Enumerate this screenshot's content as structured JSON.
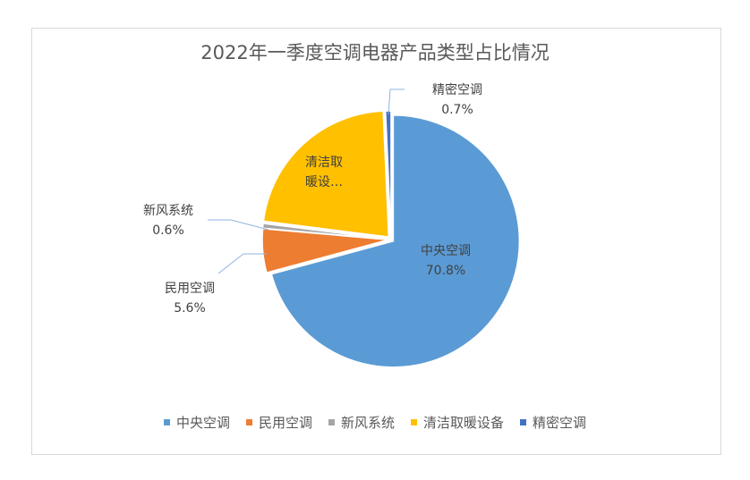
{
  "chart_data": {
    "type": "pie",
    "title": "2022年一季度空调电器产品类型占比情况",
    "slices": [
      {
        "label": "中央空调",
        "short_label": "中央空调",
        "value": 70.8,
        "value_label": "70.8%",
        "color": "#5B9BD5"
      },
      {
        "label": "民用空调",
        "short_label": "民用空调",
        "value": 5.6,
        "value_label": "5.6%",
        "color": "#ED7D31"
      },
      {
        "label": "新风系统",
        "short_label": "新风系统",
        "value": 0.6,
        "value_label": "0.6%",
        "color": "#A5A5A5"
      },
      {
        "label": "清洁取暖设备",
        "short_label": "清洁取暖设…",
        "value": 22.3,
        "value_label": "",
        "color": "#FFC000"
      },
      {
        "label": "精密空调",
        "short_label": "精密空调",
        "value": 0.7,
        "value_label": "0.7%",
        "color": "#4472C4"
      }
    ],
    "start_angle_deg": 0,
    "direction": "clockwise",
    "legend_position": "bottom"
  }
}
